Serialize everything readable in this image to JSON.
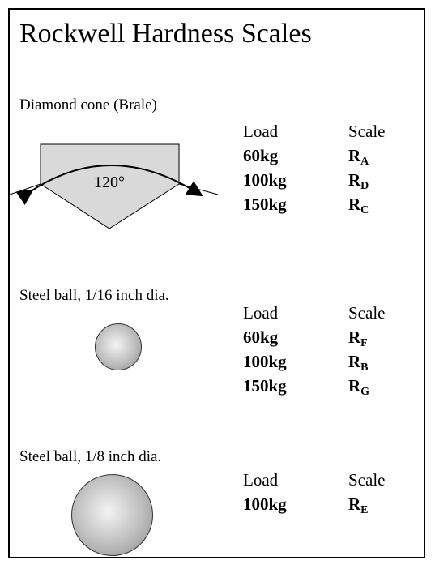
{
  "title": "Rockwell Hardness Scales",
  "sections": [
    {
      "heading": "Diamond cone (Brale)",
      "angle_label": "120°",
      "column_headers": {
        "load": "Load",
        "scale": "Scale"
      },
      "rows": [
        {
          "load": "60kg",
          "scale": "R",
          "sub": "A"
        },
        {
          "load": "100kg",
          "scale": "R",
          "sub": "D"
        },
        {
          "load": "150kg",
          "scale": "R",
          "sub": "C"
        }
      ]
    },
    {
      "heading": "Steel ball, 1/16 inch dia.",
      "column_headers": {
        "load": "Load",
        "scale": "Scale"
      },
      "rows": [
        {
          "load": "60kg",
          "scale": "R",
          "sub": "F"
        },
        {
          "load": "100kg",
          "scale": "R",
          "sub": "B"
        },
        {
          "load": "150kg",
          "scale": "R",
          "sub": "G"
        }
      ]
    },
    {
      "heading": "Steel ball, 1/8 inch dia.",
      "column_headers": {
        "load": "Load",
        "scale": "Scale"
      },
      "rows": [
        {
          "load": "100kg",
          "scale": "R",
          "sub": "E"
        }
      ]
    }
  ]
}
